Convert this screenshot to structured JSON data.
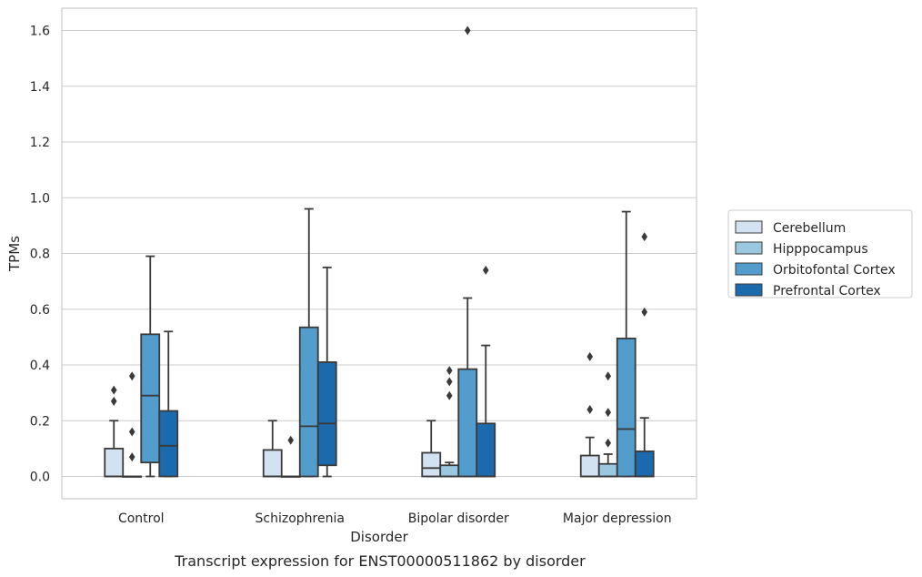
{
  "chart_data": {
    "type": "box",
    "caption": "Transcript expression for ENST00000511862 by disorder",
    "xlabel": "Disorder",
    "ylabel": "TPMs",
    "ylim": [
      -0.08,
      1.68
    ],
    "yticks": [
      "0.0",
      "0.2",
      "0.4",
      "0.6",
      "0.8",
      "1.0",
      "1.2",
      "1.4",
      "1.6"
    ],
    "grid": "horizontal",
    "legend_position": "right",
    "categories": [
      "Control",
      "Schizophrenia",
      "Bipolar disorder",
      "Major depression"
    ],
    "series": [
      {
        "name": "Cerebellum",
        "color": "#d2e2f1",
        "boxes": [
          {
            "whisker_low": 0.0,
            "q1": 0.0,
            "median": 0.0,
            "q3": 0.1,
            "whisker_high": 0.2,
            "outliers": [
              0.27,
              0.31
            ]
          },
          {
            "whisker_low": 0.0,
            "q1": 0.0,
            "median": 0.0,
            "q3": 0.095,
            "whisker_high": 0.2,
            "outliers": []
          },
          {
            "whisker_low": 0.0,
            "q1": 0.0,
            "median": 0.03,
            "q3": 0.085,
            "whisker_high": 0.2,
            "outliers": []
          },
          {
            "whisker_low": 0.0,
            "q1": 0.0,
            "median": 0.0,
            "q3": 0.075,
            "whisker_high": 0.14,
            "outliers": [
              0.24,
              0.43
            ]
          }
        ]
      },
      {
        "name": "Hipppocampus",
        "color": "#9ac8e0",
        "boxes": [
          {
            "whisker_low": 0.0,
            "q1": 0.0,
            "median": 0.0,
            "q3": 0.0,
            "whisker_high": 0.0,
            "outliers": [
              0.07,
              0.16,
              0.36
            ]
          },
          {
            "whisker_low": 0.0,
            "q1": 0.0,
            "median": 0.0,
            "q3": 0.0,
            "whisker_high": 0.0,
            "outliers": [
              0.13
            ]
          },
          {
            "whisker_low": 0.0,
            "q1": 0.0,
            "median": 0.0,
            "q3": 0.04,
            "whisker_high": 0.05,
            "outliers": [
              0.29,
              0.34,
              0.38
            ]
          },
          {
            "whisker_low": 0.0,
            "q1": 0.0,
            "median": 0.0,
            "q3": 0.045,
            "whisker_high": 0.08,
            "outliers": [
              0.12,
              0.23,
              0.36
            ]
          }
        ]
      },
      {
        "name": "Orbitofontal Cortex",
        "color": "#529dcc",
        "boxes": [
          {
            "whisker_low": 0.0,
            "q1": 0.05,
            "median": 0.29,
            "q3": 0.51,
            "whisker_high": 0.79,
            "outliers": []
          },
          {
            "whisker_low": 0.0,
            "q1": 0.0,
            "median": 0.18,
            "q3": 0.535,
            "whisker_high": 0.96,
            "outliers": []
          },
          {
            "whisker_low": 0.0,
            "q1": 0.0,
            "median": 0.0,
            "q3": 0.385,
            "whisker_high": 0.64,
            "outliers": [
              1.6
            ]
          },
          {
            "whisker_low": 0.0,
            "q1": 0.0,
            "median": 0.17,
            "q3": 0.495,
            "whisker_high": 0.95,
            "outliers": []
          }
        ]
      },
      {
        "name": "Prefrontal Cortex",
        "color": "#1c6aae",
        "boxes": [
          {
            "whisker_low": 0.0,
            "q1": 0.0,
            "median": 0.11,
            "q3": 0.235,
            "whisker_high": 0.52,
            "outliers": []
          },
          {
            "whisker_low": 0.0,
            "q1": 0.04,
            "median": 0.19,
            "q3": 0.41,
            "whisker_high": 0.75,
            "outliers": []
          },
          {
            "whisker_low": 0.0,
            "q1": 0.0,
            "median": 0.0,
            "q3": 0.19,
            "whisker_high": 0.47,
            "outliers": [
              0.74
            ]
          },
          {
            "whisker_low": 0.0,
            "q1": 0.0,
            "median": 0.0,
            "q3": 0.09,
            "whisker_high": 0.21,
            "outliers": [
              0.59,
              0.86
            ]
          }
        ]
      }
    ]
  }
}
